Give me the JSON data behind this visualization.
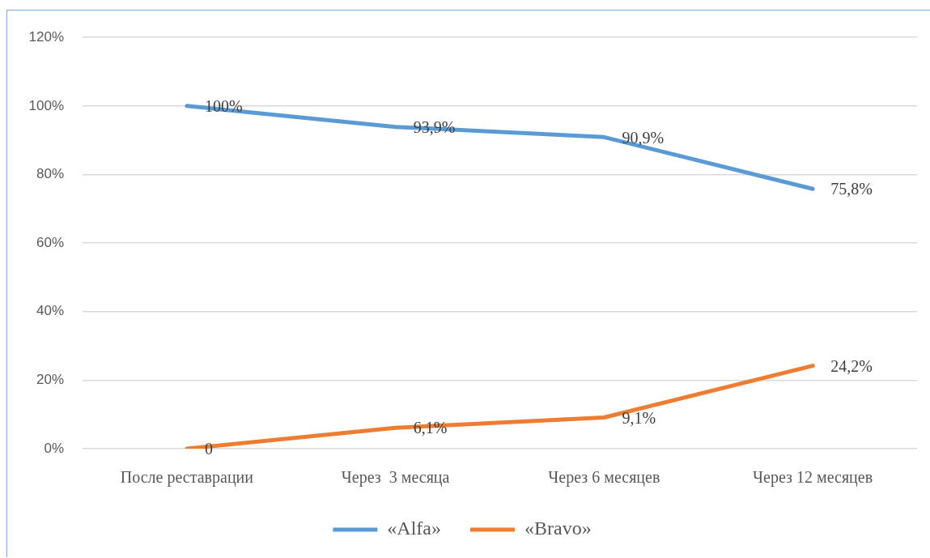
{
  "chart_data": {
    "type": "line",
    "categories": [
      "После реставрации",
      "Через  3 месяца",
      "Через 6 месяцев",
      "Через 12 месяцев"
    ],
    "series": [
      {
        "name": "«Alfa»",
        "color": "#5b9bd5",
        "values": [
          100,
          93.9,
          90.9,
          75.8
        ],
        "value_labels": [
          "100%",
          "93,9%",
          "90,9%",
          "75,8%"
        ]
      },
      {
        "name": "«Bravo»",
        "color": "#ed7d31",
        "values": [
          0,
          6.1,
          9.1,
          24.2
        ],
        "value_labels": [
          "0",
          "6,1%",
          "9,1%",
          "24,2%"
        ]
      }
    ],
    "ylim": [
      0,
      120
    ],
    "yticks": [
      {
        "value": 0,
        "label": "0%"
      },
      {
        "value": 20,
        "label": "20%"
      },
      {
        "value": 40,
        "label": "40%"
      },
      {
        "value": 60,
        "label": "60%"
      },
      {
        "value": 80,
        "label": "80%"
      },
      {
        "value": 100,
        "label": "100%"
      },
      {
        "value": 120,
        "label": "120%"
      }
    ],
    "grid": "y",
    "legend": "bottom",
    "marker": "none"
  }
}
